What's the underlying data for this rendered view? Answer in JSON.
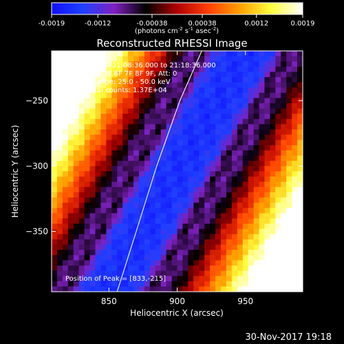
{
  "chart_data": {
    "type": "heatmap",
    "title": "Reconstructed RHESSI Image",
    "colorbar": {
      "ticks": [
        "-0.0019",
        "-0.0012",
        "-0.00038",
        "0.00038",
        "0.0012",
        "0.0019"
      ],
      "unit_parts": [
        "(photons cm",
        "-2",
        " s",
        "-1",
        " asec",
        "-2",
        ")"
      ],
      "range": [
        -0.0019,
        0.0019
      ],
      "colormap": [
        "#1010ff",
        "#2040ff",
        "#8020c0",
        "#000000",
        "#b00000",
        "#ff4000",
        "#ffa000",
        "#ffff40",
        "#ffffff"
      ]
    },
    "xlabel": "Heliocentric X (arcsec)",
    "ylabel": "Heliocentric Y (arcsec)",
    "xlim": [
      808,
      992
    ],
    "ylim": [
      -396,
      -212
    ],
    "xticks": [
      850,
      900,
      950
    ],
    "yticks": [
      -250,
      -300,
      -350
    ],
    "xtick_labels": [
      "850",
      "900",
      "950"
    ],
    "ytick_labels": [
      "−250",
      "−300",
      "−350"
    ],
    "annotations": [
      "22-Nov-2017 21:08:36.000 to 21:18:36.000",
      "Detectors: 3F 6F 7F 8F 9F, Att: 0",
      "Energy Range: 25.0 - 50.0 keV",
      "Clean      Total counts: 1.37E+04"
    ],
    "peak_label": "Position of Peak = [833,-215]",
    "peak": [
      833,
      -215
    ],
    "limb_points": [
      [
        856,
        -396
      ],
      [
        870,
        -350
      ],
      [
        885,
        -300
      ],
      [
        902,
        -250
      ],
      [
        918,
        -212
      ]
    ]
  },
  "timestamp": "30-Nov-2017 19:18"
}
